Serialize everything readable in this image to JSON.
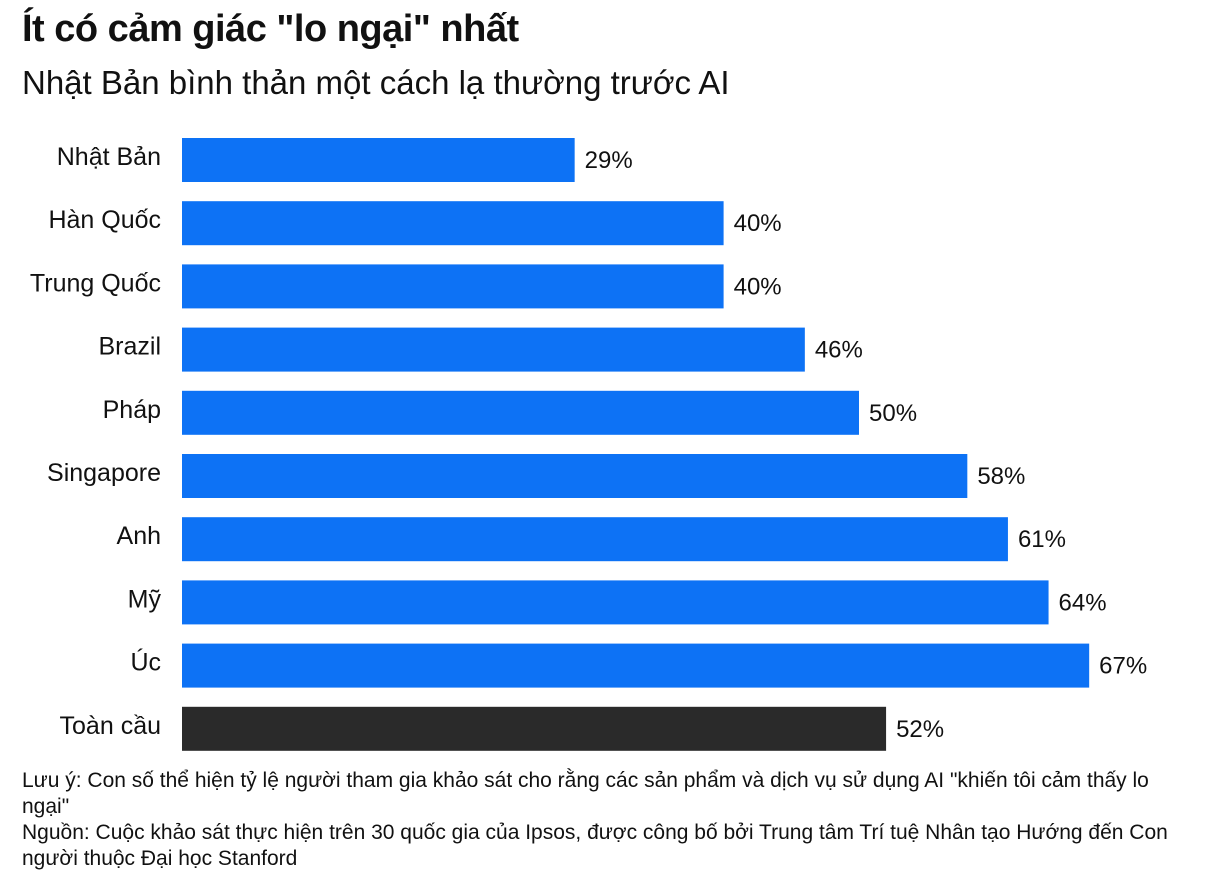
{
  "title": "Ít có cảm giác \"lo ngại\" nhất",
  "subtitle": "Nhật Bản bình thản một cách lạ thường trước AI",
  "note": "Lưu ý: Con số thể hiện tỷ lệ người tham gia khảo sát cho rằng các sản phẩm và dịch vụ sử dụng AI \"khiến tôi cảm thấy lo ngại\"",
  "source": "Nguồn: Cuộc khảo sát thực hiện trên 30 quốc gia của Ipsos, được công bố bởi Trung tâm Trí tuệ Nhân tạo Hướng đến Con người thuộc Đại học Stanford",
  "colors": {
    "bar": "#0d72f5",
    "highlight_bar": "#2a2a2a",
    "text": "#111111"
  },
  "chart_data": {
    "type": "bar",
    "orientation": "horizontal",
    "categories": [
      "Nhật Bản",
      "Hàn Quốc",
      "Trung Quốc",
      "Brazil",
      "Pháp",
      "Singapore",
      "Anh",
      "Mỹ",
      "Úc",
      "Toàn cầu"
    ],
    "values": [
      29,
      40,
      40,
      46,
      50,
      58,
      61,
      64,
      67,
      52
    ],
    "value_labels": [
      "29%",
      "40%",
      "40%",
      "46%",
      "50%",
      "58%",
      "61%",
      "64%",
      "67%",
      "52%"
    ],
    "highlight_category": "Toàn cầu",
    "unit": "%",
    "xlim": [
      0,
      100
    ],
    "grid": false,
    "legend": "none"
  }
}
